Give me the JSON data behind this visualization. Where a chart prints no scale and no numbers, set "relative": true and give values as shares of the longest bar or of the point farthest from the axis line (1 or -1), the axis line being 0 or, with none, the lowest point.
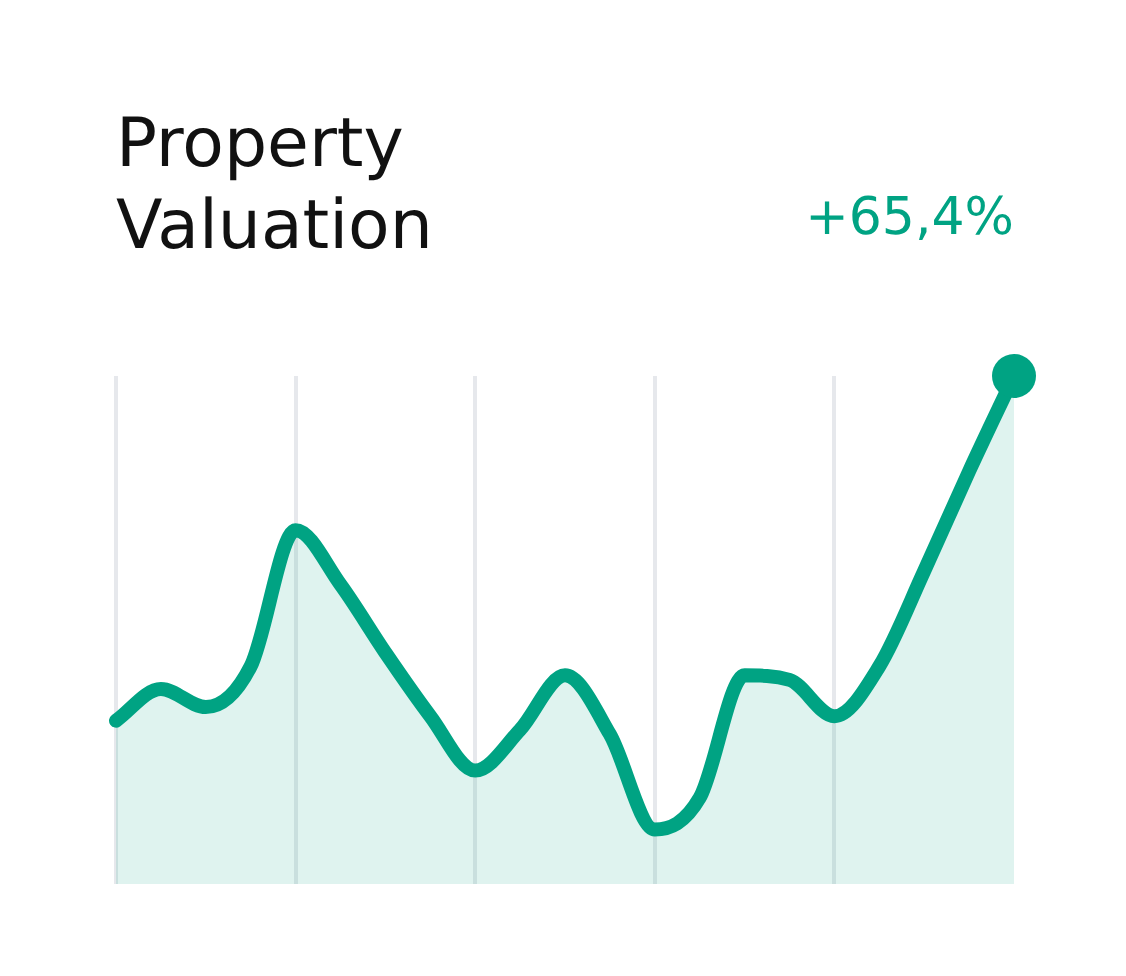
{
  "chart_data": {
    "type": "area",
    "title": "Property Valuation",
    "annotations": [
      "+65,4%"
    ],
    "relative": true,
    "categories": [
      null,
      null,
      null,
      null,
      null,
      null,
      null,
      null,
      null,
      null,
      null,
      null,
      null,
      null,
      null,
      null,
      null,
      null,
      null,
      null,
      null
    ],
    "series": [
      {
        "color": "#00a383",
        "values": [
          0.24,
          0.31,
          0.27,
          0.36,
          0.66,
          0.54,
          0.39,
          0.25,
          0.13,
          0.22,
          0.34,
          0.21,
          0,
          0.07,
          0.34,
          0.33,
          0.25,
          0.36,
          0.57,
          0.79,
          1
        ]
      }
    ],
    "grid": "x",
    "legend": false
  }
}
